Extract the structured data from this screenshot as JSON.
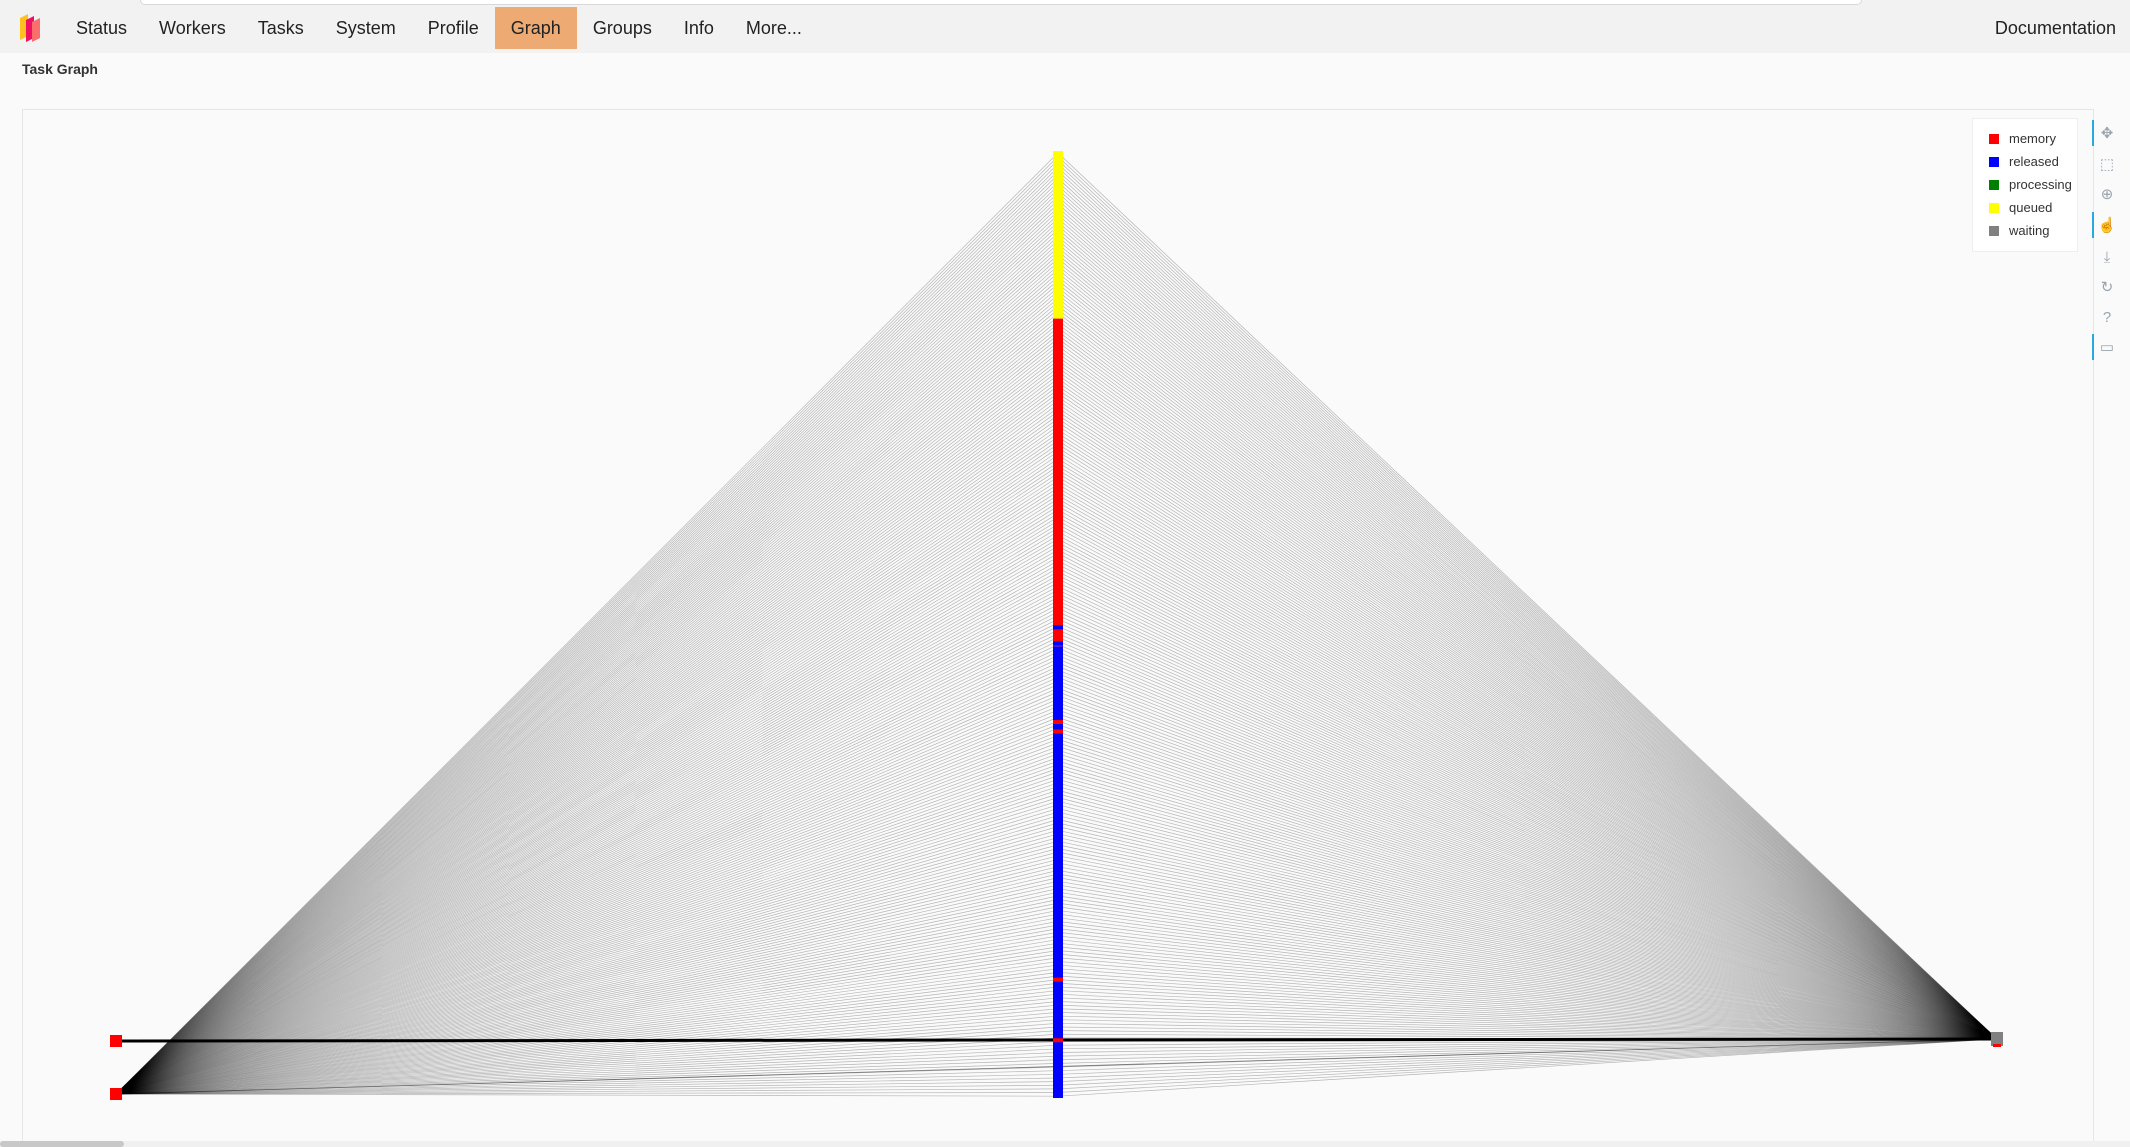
{
  "nav": {
    "items": [
      {
        "label": "Status",
        "active": false
      },
      {
        "label": "Workers",
        "active": false
      },
      {
        "label": "Tasks",
        "active": false
      },
      {
        "label": "System",
        "active": false
      },
      {
        "label": "Profile",
        "active": false
      },
      {
        "label": "Graph",
        "active": true
      },
      {
        "label": "Groups",
        "active": false
      },
      {
        "label": "Info",
        "active": false
      },
      {
        "label": "More...",
        "active": false
      }
    ],
    "documentation": "Documentation"
  },
  "page": {
    "title": "Task Graph"
  },
  "legend": [
    {
      "label": "memory",
      "color": "#ff0000"
    },
    {
      "label": "released",
      "color": "#0000ff"
    },
    {
      "label": "processing",
      "color": "#008000"
    },
    {
      "label": "queued",
      "color": "#ffff00"
    },
    {
      "label": "waiting",
      "color": "#808080"
    }
  ],
  "toolbar": [
    {
      "icon": "pan-icon",
      "glyph": "✥",
      "active": true
    },
    {
      "icon": "box-zoom-icon",
      "glyph": "⬚",
      "active": false
    },
    {
      "icon": "wheel-zoom-icon",
      "glyph": "⊕",
      "active": false
    },
    {
      "icon": "tap-icon",
      "glyph": "☝",
      "active": true
    },
    {
      "icon": "save-icon",
      "glyph": "⤓",
      "active": false
    },
    {
      "icon": "reset-icon",
      "glyph": "↻",
      "active": false
    },
    {
      "icon": "help-icon",
      "glyph": "?",
      "active": false
    },
    {
      "icon": "hover-icon",
      "glyph": "▭",
      "active": true
    }
  ],
  "graph": {
    "middle_column_segments": [
      {
        "state": "queued",
        "color": "#ffff00",
        "from": 0.0,
        "to": 0.177
      },
      {
        "state": "memory",
        "color": "#ff0000",
        "from": 0.177,
        "to": 0.523
      },
      {
        "state": "released",
        "color": "#0000ff",
        "from": 0.523,
        "to": 1.0
      }
    ],
    "middle_column_stripes": [
      {
        "color": "#0000ff",
        "at": 0.503
      },
      {
        "color": "#0000ff",
        "at": 0.52
      },
      {
        "color": "#ff0000",
        "at": 0.603
      },
      {
        "color": "#ff0000",
        "at": 0.613
      },
      {
        "color": "#ff0000",
        "at": 0.875
      },
      {
        "color": "#ff0000",
        "at": 0.939
      }
    ],
    "left_nodes": [
      "memory",
      "memory"
    ],
    "right_node": "waiting"
  }
}
